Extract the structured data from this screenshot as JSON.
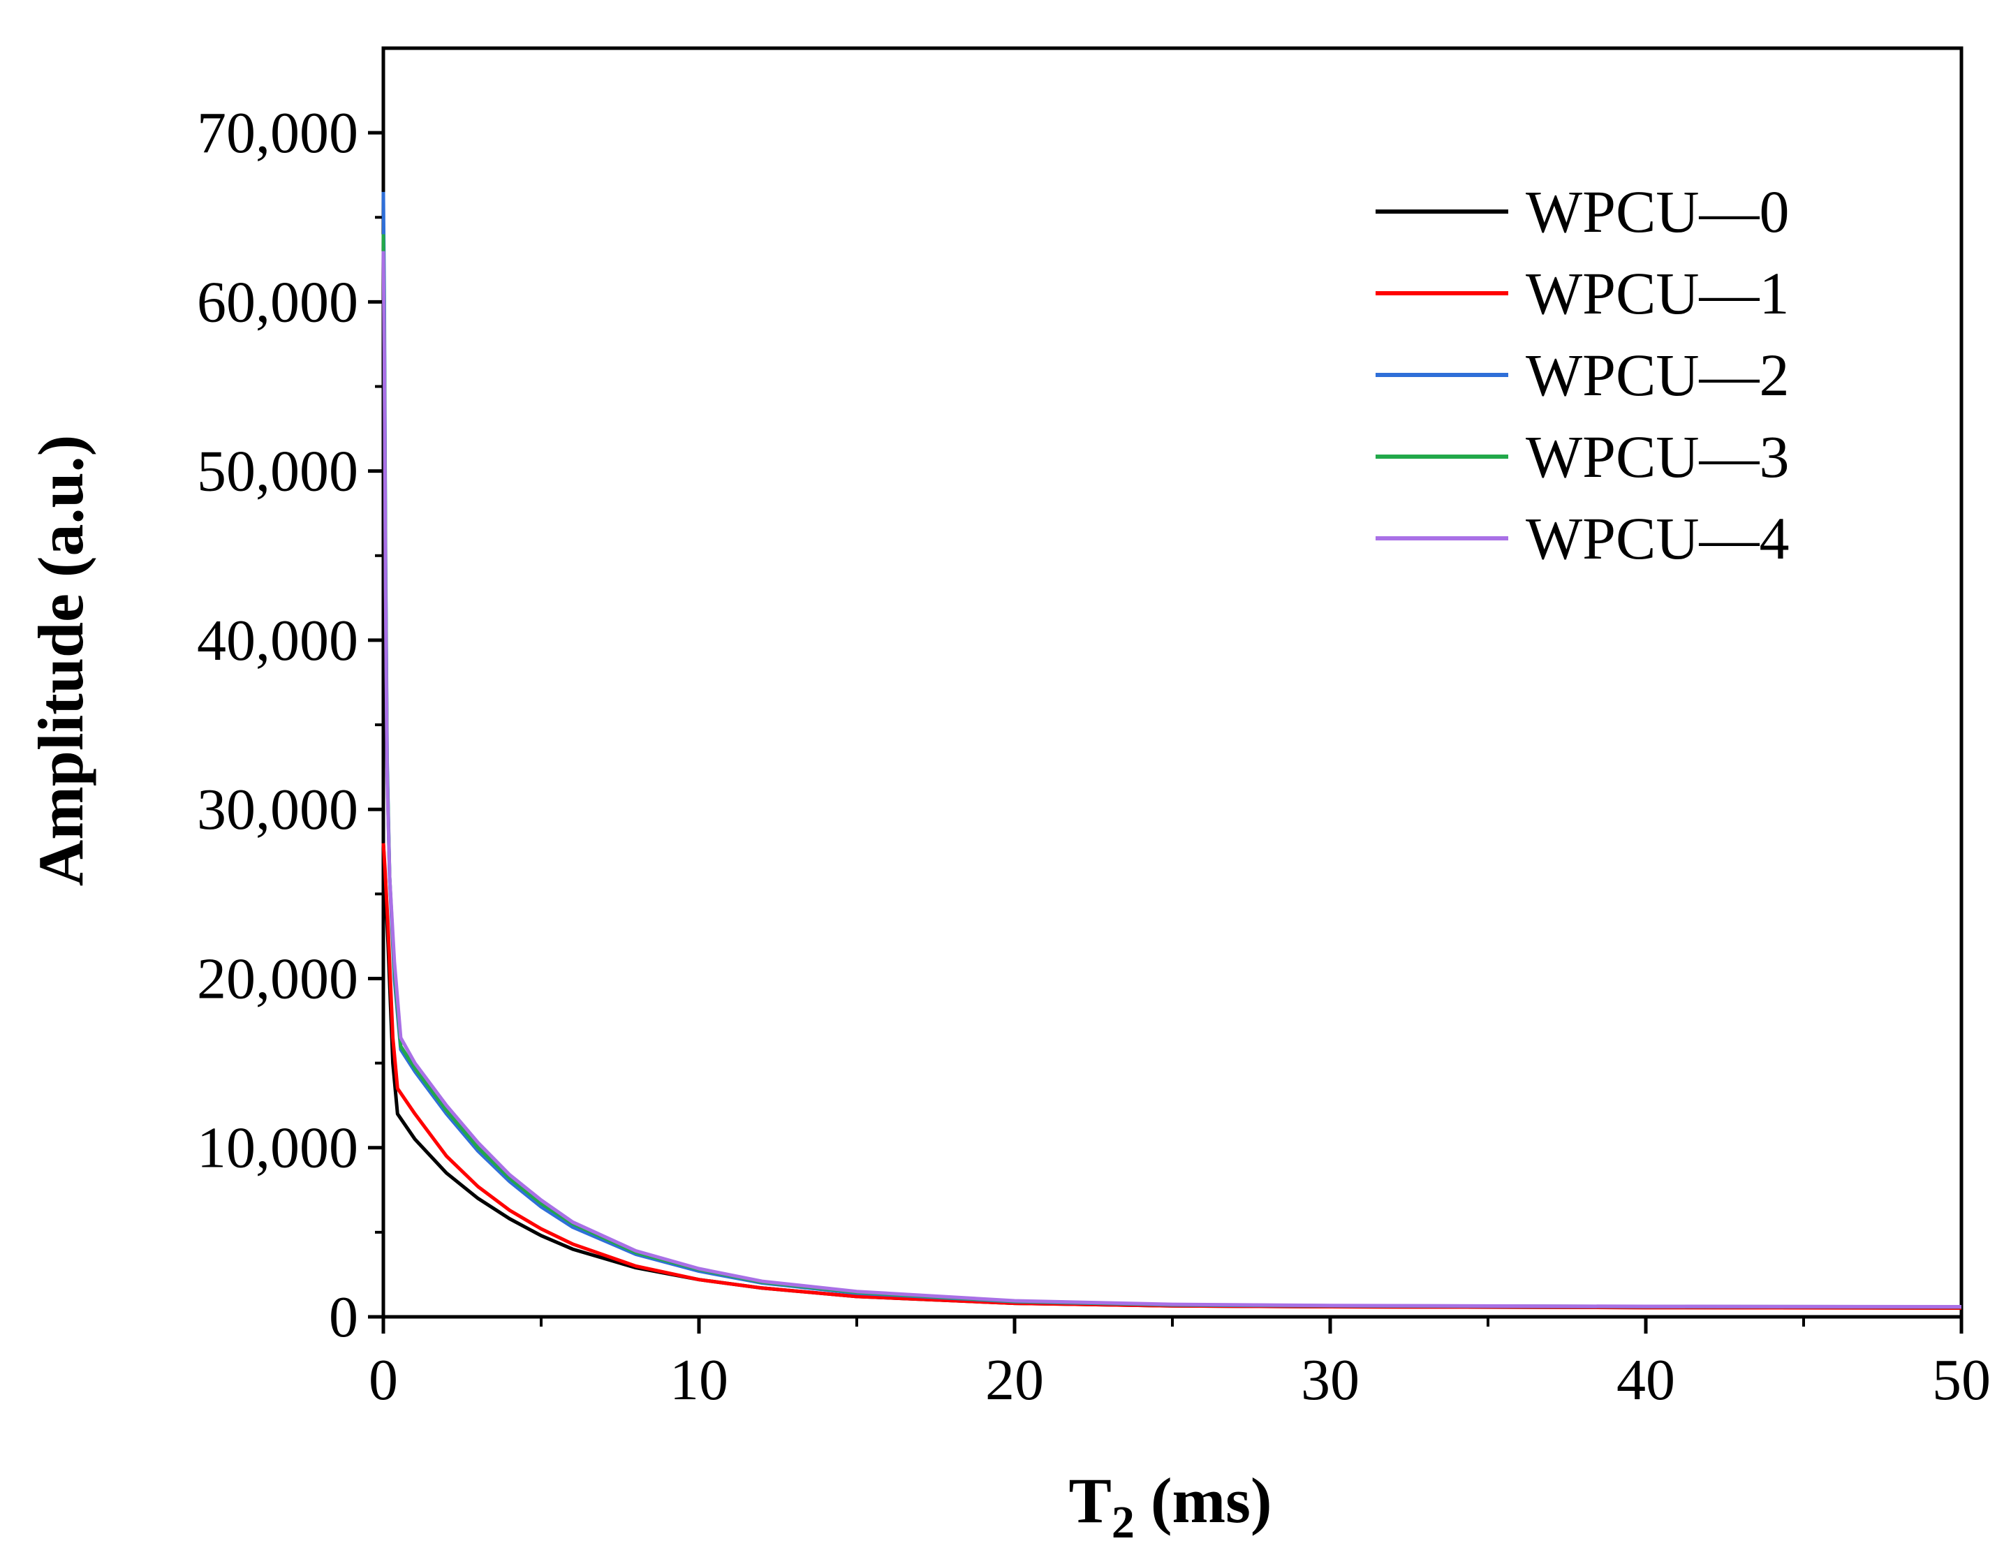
{
  "chart_data": {
    "type": "line",
    "title": "",
    "xlabel_main": "T",
    "xlabel_sub": "2",
    "xlabel_unit": " (ms)",
    "ylabel": "Amplitude (a.u.)",
    "xlim": [
      0,
      50
    ],
    "ylim": [
      0,
      75000
    ],
    "xticks": [
      0,
      10,
      20,
      30,
      40,
      50
    ],
    "xtick_labels": [
      "0",
      "10",
      "20",
      "30",
      "40",
      "50"
    ],
    "yticks": [
      0,
      10000,
      20000,
      30000,
      40000,
      50000,
      60000,
      70000
    ],
    "ytick_labels": [
      "0",
      "10,000",
      "20,000",
      "30,000",
      "40,000",
      "50,000",
      "60,000",
      "70,000"
    ],
    "grid": false,
    "legend_position": "top-right",
    "series": [
      {
        "name": "WPCU—0",
        "color": "#000000",
        "x": [
          0,
          0.05,
          0.15,
          0.3,
          0.45,
          1,
          2,
          3,
          4,
          5,
          6,
          8,
          10,
          12,
          15,
          20,
          25,
          30,
          40,
          50
        ],
        "y": [
          28000,
          26000,
          22000,
          15000,
          12000,
          10500,
          8500,
          7000,
          5800,
          4800,
          4000,
          2900,
          2200,
          1700,
          1200,
          800,
          650,
          600,
          550,
          520
        ]
      },
      {
        "name": "WPCU—1",
        "color": "#ff0000",
        "x": [
          0,
          0.05,
          0.15,
          0.3,
          0.45,
          1,
          2,
          3,
          4,
          5,
          6,
          8,
          10,
          12,
          15,
          20,
          25,
          30,
          40,
          50
        ],
        "y": [
          28000,
          26500,
          23000,
          16500,
          13500,
          12000,
          9500,
          7700,
          6300,
          5200,
          4300,
          3000,
          2200,
          1700,
          1200,
          800,
          650,
          600,
          550,
          520
        ]
      },
      {
        "name": "WPCU—2",
        "color": "#2f6fd8",
        "x": [
          0,
          0.03,
          0.07,
          0.12,
          0.2,
          0.35,
          0.55,
          1,
          2,
          3,
          4,
          5,
          6,
          8,
          10,
          12,
          15,
          20,
          25,
          30,
          40,
          50
        ],
        "y": [
          66500,
          60000,
          45000,
          33000,
          26000,
          20000,
          15800,
          14500,
          12000,
          9800,
          8000,
          6500,
          5300,
          3700,
          2700,
          2000,
          1400,
          900,
          700,
          650,
          600,
          580
        ]
      },
      {
        "name": "WPCU—3",
        "color": "#22a84a",
        "x": [
          0,
          0.03,
          0.07,
          0.12,
          0.2,
          0.35,
          0.55,
          1,
          2,
          3,
          4,
          5,
          6,
          8,
          10,
          12,
          15,
          20,
          25,
          30,
          40,
          50
        ],
        "y": [
          64000,
          58000,
          44000,
          32500,
          26000,
          20500,
          16000,
          14700,
          12200,
          10000,
          8200,
          6700,
          5500,
          3800,
          2800,
          2050,
          1450,
          920,
          720,
          660,
          610,
          590
        ]
      },
      {
        "name": "WPCU—4",
        "color": "#a970e6",
        "x": [
          0,
          0.03,
          0.07,
          0.12,
          0.2,
          0.35,
          0.55,
          1,
          2,
          3,
          4,
          5,
          6,
          8,
          10,
          12,
          15,
          20,
          25,
          30,
          40,
          50
        ],
        "y": [
          63000,
          57000,
          43000,
          32000,
          26000,
          21000,
          16500,
          15000,
          12500,
          10300,
          8400,
          6900,
          5600,
          3900,
          2850,
          2100,
          1500,
          950,
          740,
          670,
          620,
          600
        ]
      }
    ]
  }
}
